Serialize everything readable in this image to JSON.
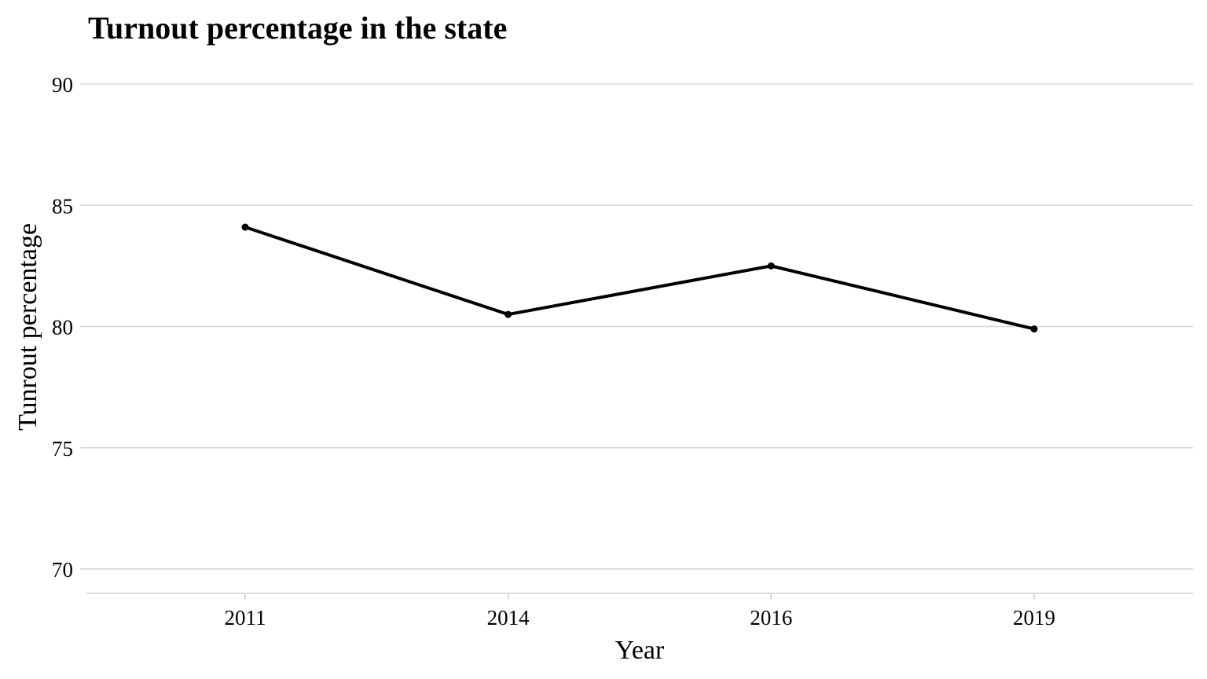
{
  "chart_data": {
    "type": "line",
    "title": "Turnout percentage in the state",
    "xlabel": "Year",
    "ylabel": "Tunrout percentage",
    "categories": [
      "2011",
      "2014",
      "2016",
      "2019"
    ],
    "series": [
      {
        "values": [
          84.1,
          80.5,
          82.5,
          79.9
        ]
      }
    ],
    "yticks": [
      70,
      75,
      80,
      85,
      90
    ],
    "ylim": [
      69,
      90
    ],
    "grid": true,
    "grid_axis": "y",
    "legend": "none",
    "line_color": "#000000",
    "grid_color": "#d6d6d6"
  }
}
